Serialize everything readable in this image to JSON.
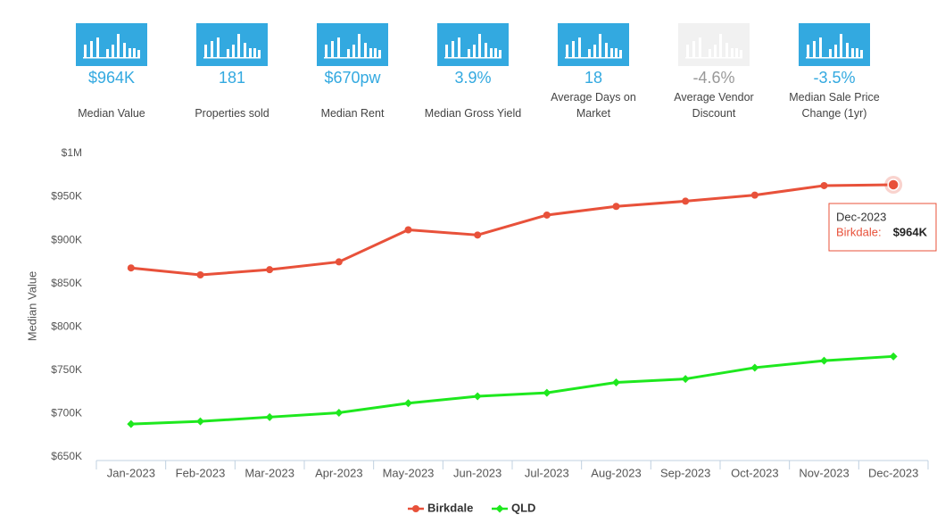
{
  "stats": [
    {
      "value": "$964K",
      "label": "Median Value",
      "color": "#33a9e0"
    },
    {
      "value": "181",
      "label": "Properties sold",
      "color": "#33a9e0"
    },
    {
      "value": "$670pw",
      "label": "Median Rent",
      "color": "#33a9e0"
    },
    {
      "value": "3.9%",
      "label": "Median Gross Yield",
      "color": "#33a9e0"
    },
    {
      "value": "18",
      "label": "Average Days on Market",
      "color": "#33a9e0"
    },
    {
      "value": "-4.6%",
      "label": "Average Vendor Discount",
      "color": "#c8c8c8"
    },
    {
      "value": "-3.5%",
      "label": "Median Sale Price Change (1yr)",
      "color": "#33a9e0"
    }
  ],
  "chart_data": {
    "type": "line",
    "ylabel": "Median Value",
    "categories": [
      "Jan-2023",
      "Feb-2023",
      "Mar-2023",
      "Apr-2023",
      "May-2023",
      "Jun-2023",
      "Jul-2023",
      "Aug-2023",
      "Sep-2023",
      "Oct-2023",
      "Nov-2023",
      "Dec-2023"
    ],
    "series": [
      {
        "name": "Birkdale",
        "color": "#e8513a",
        "marker": "circle",
        "values": [
          868000,
          860000,
          866000,
          875000,
          912000,
          906000,
          929000,
          939000,
          945000,
          952000,
          963000,
          964000
        ]
      },
      {
        "name": "QLD",
        "color": "#1ee81e",
        "marker": "diamond",
        "values": [
          688000,
          691000,
          696000,
          701000,
          712000,
          720000,
          724000,
          736000,
          740000,
          753000,
          761000,
          766000
        ]
      }
    ],
    "ylim": [
      650000,
      1000000
    ],
    "yticks": [
      {
        "value": 650000,
        "label": "$650K"
      },
      {
        "value": 700000,
        "label": "$700K"
      },
      {
        "value": 750000,
        "label": "$750K"
      },
      {
        "value": 800000,
        "label": "$800K"
      },
      {
        "value": 850000,
        "label": "$850K"
      },
      {
        "value": 900000,
        "label": "$900K"
      },
      {
        "value": 950000,
        "label": "$950K"
      },
      {
        "value": 1000000,
        "label": "$1M"
      }
    ],
    "grid": false,
    "legend": "bottom",
    "tooltip": {
      "x": "Dec-2023",
      "label": "Birkdale:",
      "value": "$964K"
    }
  }
}
